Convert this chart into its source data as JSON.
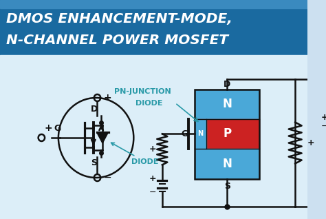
{
  "title_line1": "DMOS ENHANCEMENT-MODE,",
  "title_line2": "N-CHANNEL POWER MOSFET",
  "title_color": "#FFFFFF",
  "title_bg_color": "#1a6aa0",
  "bg_color": "#cce0f0",
  "circuit_bg": "#dceef8",
  "label_D": "D",
  "label_G": "G",
  "label_S": "S",
  "label_plus": "+",
  "label_minus": "−",
  "label_diode": "DIODE",
  "label_pn": "PN-JUNCTION",
  "label_pn2": "DIODE",
  "label_N": "N",
  "label_P": "P",
  "line_color": "#111111",
  "line_width": 1.8,
  "mosfet_circle_color": "#111111",
  "diode_fill": "#111111",
  "N_color": "#4aa8d8",
  "P_color": "#cc2222",
  "annotation_color": "#2a9aa8",
  "resistor_color": "#111111"
}
